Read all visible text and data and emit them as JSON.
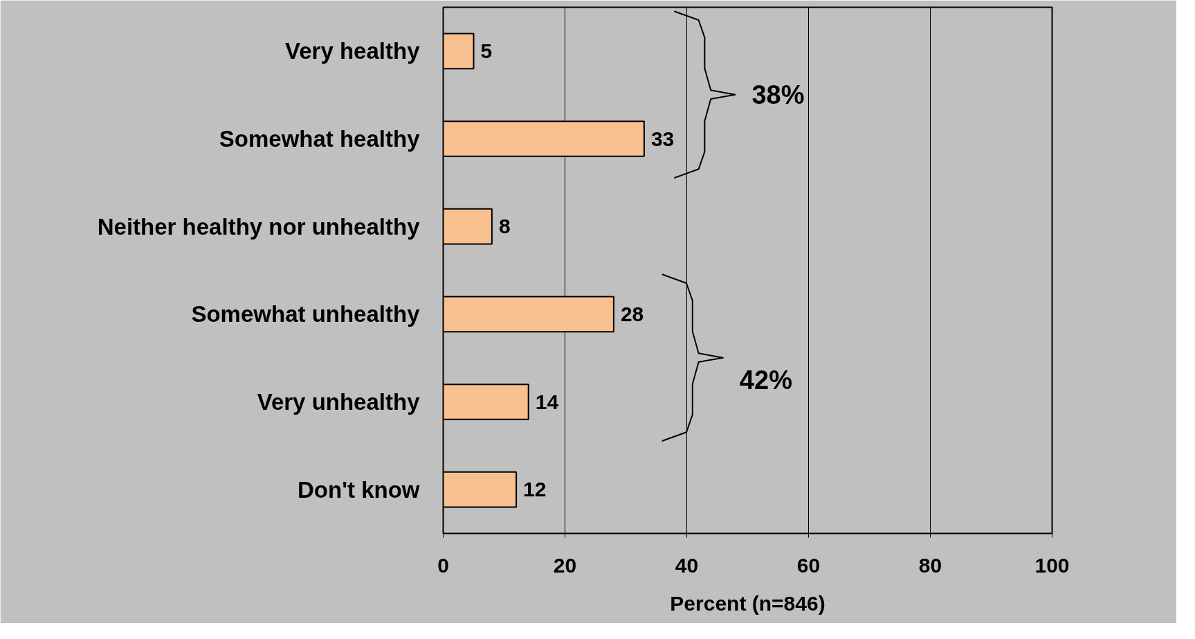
{
  "chart_data": {
    "type": "bar",
    "orientation": "horizontal",
    "categories": [
      "Very healthy",
      "Somewhat healthy",
      "Neither healthy nor unhealthy",
      "Somewhat unhealthy",
      "Very unhealthy",
      "Don't know"
    ],
    "values": [
      5,
      33,
      8,
      28,
      14,
      12
    ],
    "color": "#f9c08f",
    "xlabel": "Percent (n=846)",
    "xlim": [
      0,
      100
    ],
    "xticks": [
      0,
      20,
      40,
      60,
      80,
      100
    ],
    "grid": "x",
    "data_labels": true,
    "annotations": [
      "38%",
      "42%"
    ]
  }
}
